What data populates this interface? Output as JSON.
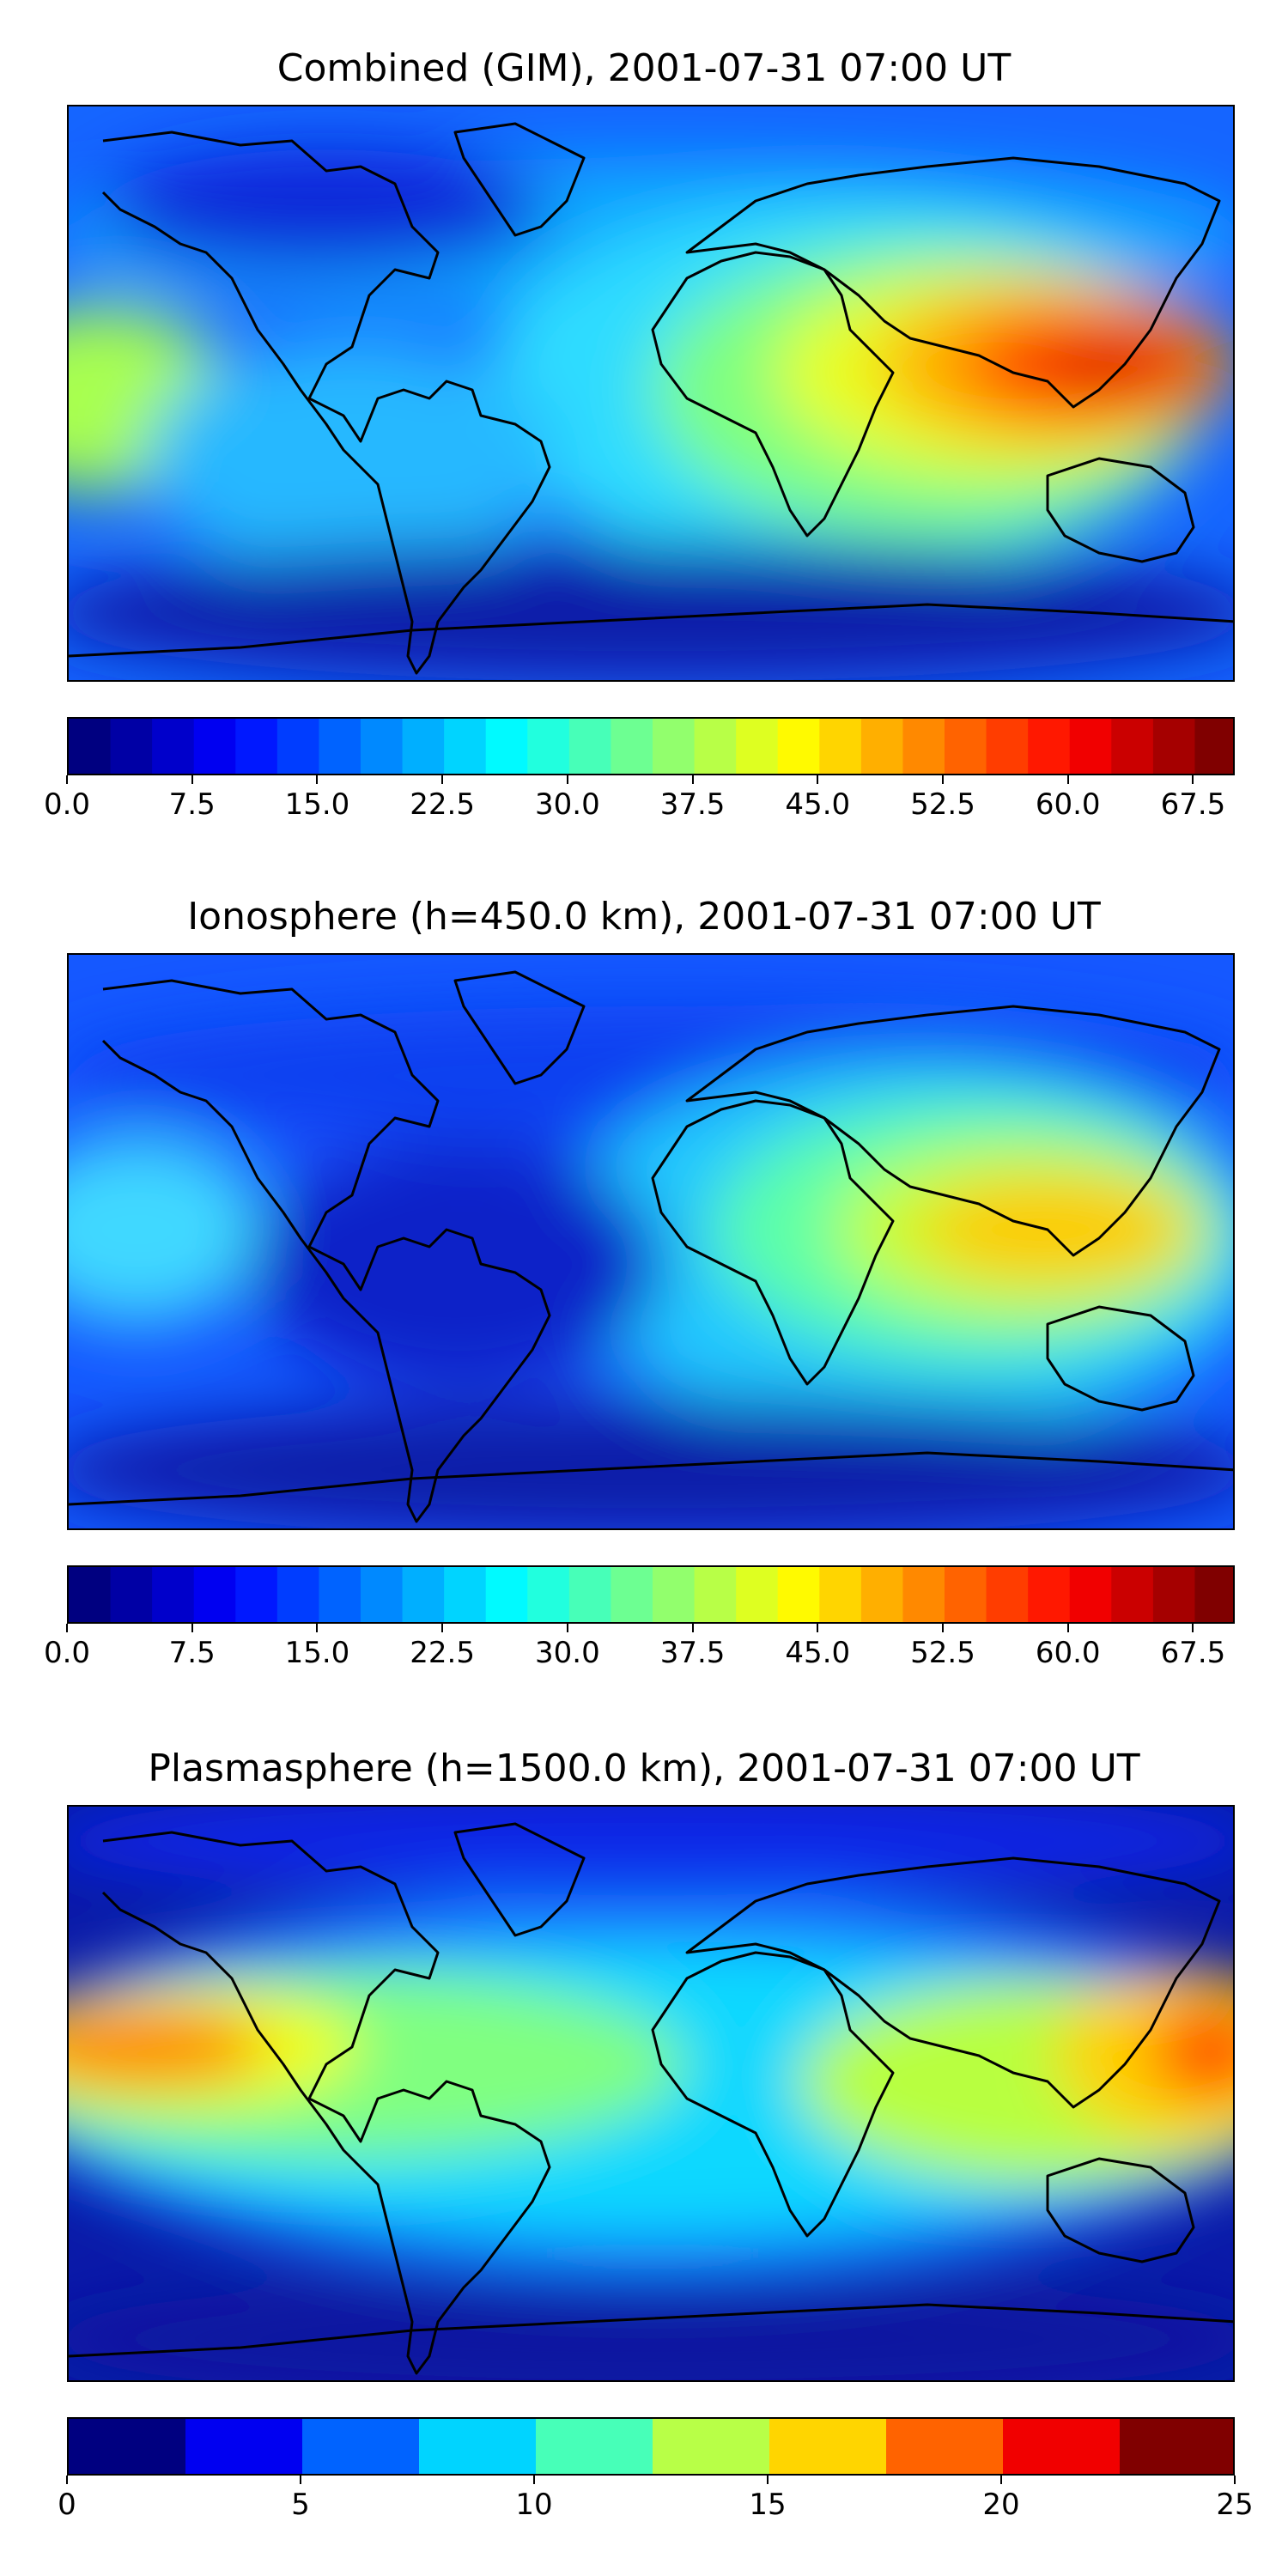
{
  "panels": [
    {
      "title": "Combined (GIM), 2001-07-31 07:00 UT",
      "colorbar": {
        "min": 0,
        "max": 70,
        "levels": 28,
        "colormap": "jet",
        "tick_labels": [
          "0.0",
          "7.5",
          "15.0",
          "22.5",
          "30.0",
          "37.5",
          "45.0",
          "52.5",
          "60.0",
          "67.5"
        ],
        "tick_values": [
          0,
          7.5,
          15,
          22.5,
          30,
          37.5,
          45,
          52.5,
          60,
          67.5
        ]
      }
    },
    {
      "title": "Ionosphere  (h=450.0 km), 2001-07-31 07:00 UT",
      "colorbar": {
        "min": 0,
        "max": 70,
        "levels": 28,
        "colormap": "jet",
        "tick_labels": [
          "0.0",
          "7.5",
          "15.0",
          "22.5",
          "30.0",
          "37.5",
          "45.0",
          "52.5",
          "60.0",
          "67.5"
        ],
        "tick_values": [
          0,
          7.5,
          15,
          22.5,
          30,
          37.5,
          45,
          52.5,
          60,
          67.5
        ]
      }
    },
    {
      "title": "Plasmasphere (h=1500.0 km), 2001-07-31 07:00 UT",
      "colorbar": {
        "min": 0,
        "max": 25,
        "levels": 10,
        "colormap": "jet",
        "tick_labels": [
          "0",
          "5",
          "10",
          "15",
          "20",
          "25"
        ],
        "tick_values": [
          0,
          5,
          10,
          15,
          20,
          25
        ]
      }
    }
  ],
  "map": {
    "projection": "equirectangular",
    "features": [
      "coastlines"
    ]
  }
}
